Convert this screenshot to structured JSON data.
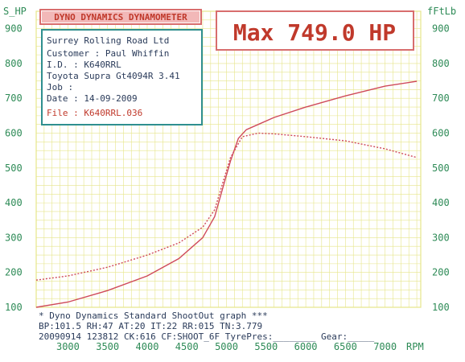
{
  "colors": {
    "grid": "#e6e58a",
    "axis": "#2e8b57",
    "curve": "#cf4a5a",
    "box_border": "#d86d6d",
    "info_border": "#2f8f8f",
    "header_fill": "#f2b8b8"
  },
  "header": {
    "title": "DYNO DYNAMICS DYNAMOMETER",
    "max_label": "Max 749.0 HP"
  },
  "info": {
    "lines": [
      "Surrey Rolling Road Ltd",
      "Customer : Paul Whiffin",
      "I.D.     : K640RRL",
      "Toyota Supra Gt4094R 3.41",
      "Job      :",
      "Date     : 14-09-2009",
      "File     : K640RRL.036"
    ]
  },
  "footer": {
    "lines": [
      "* Dyno Dynamics Standard ShootOut graph ***",
      "BP:101.5 RH:47 AT:20 IT:22  RR:015 TN:3.779",
      "20090914 123812 CK:616 CF:SHOOT_6F TyrePres:________ Gear:_____"
    ]
  },
  "chart_data": {
    "type": "line",
    "xlabel": "RPM",
    "ylabel_left": "S_HP",
    "ylabel_right": "fFtLb",
    "xlim": [
      2600,
      7450
    ],
    "ylim": [
      100,
      950
    ],
    "x_ticks": [
      3000,
      3500,
      4000,
      4500,
      5000,
      5500,
      6000,
      6500,
      7000
    ],
    "y_ticks": [
      100,
      200,
      300,
      400,
      500,
      600,
      700,
      800,
      900
    ],
    "grid": true,
    "series": [
      {
        "style": "solid",
        "x": [
          2600,
          3000,
          3500,
          4000,
          4400,
          4700,
          4850,
          4950,
          5050,
          5150,
          5250,
          5400,
          5600,
          6000,
          6500,
          7000,
          7400
        ],
        "y": [
          100,
          115,
          148,
          190,
          240,
          300,
          360,
          440,
          520,
          585,
          610,
          625,
          645,
          675,
          707,
          735,
          749
        ]
      },
      {
        "style": "dotted",
        "x": [
          2600,
          3000,
          3500,
          4000,
          4400,
          4700,
          4850,
          4950,
          5050,
          5200,
          5400,
          5600,
          6000,
          6500,
          7000,
          7400
        ],
        "y": [
          178,
          190,
          215,
          250,
          285,
          330,
          380,
          455,
          530,
          590,
          600,
          598,
          590,
          578,
          555,
          530
        ]
      }
    ]
  }
}
